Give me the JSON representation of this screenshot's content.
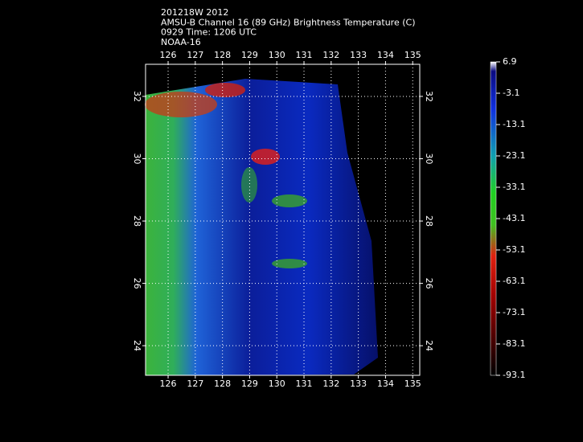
{
  "header": {
    "lines": [
      "201218W 2012",
      "AMSU-B Channel 16 (89 GHz) Brightness Temperature (C)",
      "0929 Time: 1206 UTC",
      "NOAA-16"
    ]
  },
  "map": {
    "lon_ticks": [
      126,
      127,
      128,
      129,
      130,
      131,
      132,
      133,
      134,
      135
    ],
    "lon_range": [
      125.17,
      135.26
    ],
    "lat_ticks": [
      32,
      30,
      28,
      26,
      24
    ],
    "lat_range": [
      23.05,
      33.03
    ]
  },
  "colorbar": {
    "ticks": [
      6.9,
      -3.1,
      -13.1,
      -23.1,
      -33.1,
      -43.1,
      -53.1,
      -63.1,
      -73.1,
      -83.1,
      -93.1
    ],
    "range": [
      -93.1,
      6.9
    ]
  }
}
